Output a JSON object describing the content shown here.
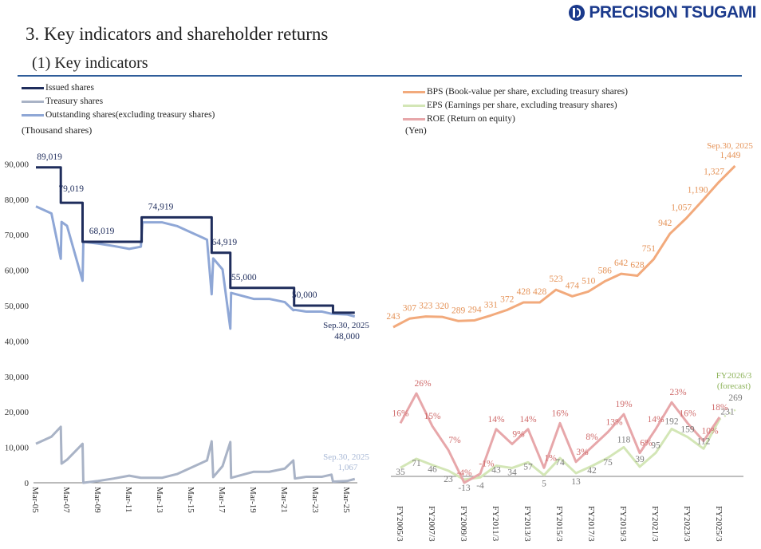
{
  "header": {
    "logo_text": "PRECISION TSUGAMI",
    "title": "3. Key indicators and shareholder returns",
    "subtitle": "(1) Key indicators"
  },
  "colors": {
    "issued": "#1f2d5c",
    "treasury": "#a9b3c6",
    "outstanding": "#8fa7d6",
    "bps": "#f2aa7c",
    "eps": "#d3e6b6",
    "roe": "#e7a7aa",
    "bps_label": "#e59358",
    "roe_label": "#cf6b6b",
    "eps_label": "#7a7a7a",
    "forecast_label": "#8db35a"
  },
  "chart_data": [
    {
      "type": "line",
      "title": "Shares",
      "ylabel": "(Thousand shares)",
      "ylim": [
        0,
        90000
      ],
      "yticks": [
        "0",
        "10,000",
        "20,000",
        "30,000",
        "40,000",
        "50,000",
        "60,000",
        "70,000",
        "80,000",
        "90,000"
      ],
      "xticks": [
        "Mar-05",
        "Mar-07",
        "Mar-09",
        "Mar-11",
        "Mar-13",
        "Mar-15",
        "Mar-17",
        "Mar-19",
        "Mar-21",
        "Mar-23",
        "Mar-25"
      ],
      "xlim": [
        2005,
        2025.5
      ],
      "legend": [
        "Issued shares",
        "Treasury shares",
        "Outstanding shares(excluding treasury shares)"
      ],
      "issued_steps": [
        {
          "from": 2005.0,
          "to": 2006.6,
          "value": 89019,
          "label": "89,019"
        },
        {
          "from": 2006.6,
          "to": 2008.0,
          "value": 79019,
          "label": "79,019"
        },
        {
          "from": 2008.0,
          "to": 2011.8,
          "value": 68019,
          "label": "68,019"
        },
        {
          "from": 2011.8,
          "to": 2016.3,
          "value": 74919,
          "label": "74,919"
        },
        {
          "from": 2016.3,
          "to": 2017.5,
          "value": 64919,
          "label": "64,919"
        },
        {
          "from": 2017.5,
          "to": 2021.6,
          "value": 55000,
          "label": "55,000"
        },
        {
          "from": 2021.6,
          "to": 2024.1,
          "value": 50000,
          "label": "50,000"
        },
        {
          "from": 2024.1,
          "to": 2025.5,
          "value": 48000,
          "label": "48,000"
        }
      ],
      "treasury": [
        [
          2005.0,
          11000
        ],
        [
          2006.0,
          13000
        ],
        [
          2006.6,
          15800
        ],
        [
          2006.65,
          5400
        ],
        [
          2007.0,
          6500
        ],
        [
          2008.0,
          11000
        ],
        [
          2008.05,
          0
        ],
        [
          2009.0,
          500
        ],
        [
          2010.0,
          1200
        ],
        [
          2011.0,
          2000
        ],
        [
          2011.75,
          1400
        ],
        [
          2011.85,
          1400
        ],
        [
          2013.1,
          1400
        ],
        [
          2014.1,
          2500
        ],
        [
          2015.1,
          4500
        ],
        [
          2016.0,
          6300
        ],
        [
          2016.3,
          11700
        ],
        [
          2016.4,
          1600
        ],
        [
          2017.0,
          4700
        ],
        [
          2017.5,
          11500
        ],
        [
          2017.55,
          1400
        ],
        [
          2019.0,
          3100
        ],
        [
          2020.0,
          3100
        ],
        [
          2021.0,
          4000
        ],
        [
          2021.55,
          6300
        ],
        [
          2021.65,
          1200
        ],
        [
          2022.4,
          1700
        ],
        [
          2023.4,
          1700
        ],
        [
          2024.0,
          2300
        ],
        [
          2024.1,
          300
        ],
        [
          2025.0,
          500
        ],
        [
          2025.5,
          1067
        ]
      ],
      "annotations": {
        "issued_date": "Sep.30, 2025",
        "treasury_date": "Sep.30, 2025",
        "treasury_last": "1,067"
      }
    },
    {
      "type": "line",
      "title": "Per-share indicators",
      "ylabel": "(Yen)",
      "legend": [
        "BPS (Book-value per share, excluding treasury shares)",
        "EPS (Earnings per share, excluding treasury shares)",
        "ROE (Return on equity)"
      ],
      "xticks": [
        "FY2005/3",
        "FY2007/3",
        "FY2009/3",
        "FY2011/3",
        "FY2013/3",
        "FY2015/3",
        "FY2017/3",
        "FY2019/3",
        "FY2021/3",
        "FY2023/3",
        "FY2025/3"
      ],
      "years": [
        "FY2005/3",
        "FY2006/3",
        "FY2007/3",
        "FY2008/3",
        "FY2009/3",
        "FY2010/3",
        "FY2011/3",
        "FY2012/3",
        "FY2013/3",
        "FY2014/3",
        "FY2015/3",
        "FY2016/3",
        "FY2017/3",
        "FY2018/3",
        "FY2019/3",
        "FY2020/3",
        "FY2021/3",
        "FY2022/3",
        "FY2023/3",
        "FY2024/3",
        "FY2025/3"
      ],
      "bps": [
        243,
        307,
        323,
        320,
        289,
        294,
        331,
        372,
        428,
        428,
        523,
        474,
        510,
        586,
        642,
        628,
        751,
        942,
        1057,
        1190,
        1327,
        1449
      ],
      "bps_labels": [
        "243",
        "307",
        "323",
        "320",
        "289",
        "294",
        "331",
        "372",
        "428",
        "428",
        "523",
        "474",
        "510",
        "586",
        "642",
        "628",
        "751",
        "942",
        "1,057",
        "1,190",
        "1,327",
        "1,449"
      ],
      "bps_last_date": "Sep.30, 2025",
      "eps": [
        35,
        71,
        46,
        23,
        -13,
        -4,
        43,
        34,
        57,
        5,
        74,
        13,
        42,
        75,
        118,
        39,
        95,
        192,
        159,
        112,
        231
      ],
      "eps_forecast": 269,
      "eps_forecast_label": [
        "FY2026/3",
        "(forecast)"
      ],
      "roe": [
        16,
        26,
        15,
        7,
        -4,
        -1,
        14,
        9,
        14,
        1,
        16,
        3,
        8,
        13,
        19,
        6,
        14,
        23,
        16,
        10,
        18
      ]
    }
  ]
}
